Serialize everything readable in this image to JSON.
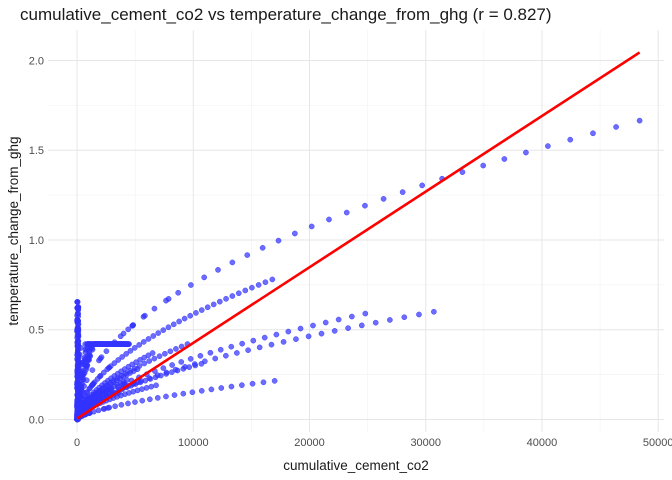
{
  "chart_data": {
    "type": "scatter",
    "title": "cumulative_cement_co2 vs temperature_change_from_ghg (r = 0.827)",
    "xlabel": "cumulative_cement_co2",
    "ylabel": "temperature_change_from_ghg",
    "xlim": [
      -2500,
      50500
    ],
    "ylim": [
      -0.07,
      2.17
    ],
    "xticks": [
      0,
      10000,
      20000,
      30000,
      40000,
      50000
    ],
    "xtick_labels": [
      "0",
      "10000",
      "20000",
      "30000",
      "40000",
      "50000"
    ],
    "yticks": [
      0.0,
      0.5,
      1.0,
      1.5,
      2.0
    ],
    "ytick_labels": [
      "0.0",
      "0.5",
      "1.0",
      "1.5",
      "2.0"
    ],
    "grid": true,
    "point_color": "#3333ff",
    "fit_line_color": "#ff0000",
    "fit_line": {
      "x": [
        0,
        48400
      ],
      "y": [
        0.005,
        2.045
      ]
    },
    "series": [
      {
        "curves": [
          {
            "x_end": 48400,
            "y_end": 1.665,
            "exp": 0.5,
            "n": 38
          },
          {
            "x_end": 16800,
            "y_end": 0.78,
            "exp": 0.55,
            "n": 45
          },
          {
            "x_end": 30700,
            "y_end": 0.6,
            "exp": 0.6,
            "n": 38
          },
          {
            "x_end": 24800,
            "y_end": 0.59,
            "exp": 0.6,
            "n": 34
          },
          {
            "x_end": 17000,
            "y_end": 0.215,
            "exp": 0.65,
            "n": 28
          },
          {
            "x_end": 10700,
            "y_end": 0.31,
            "exp": 0.6,
            "n": 32
          },
          {
            "x_end": 9500,
            "y_end": 0.42,
            "exp": 0.6,
            "n": 30
          },
          {
            "x_end": 6500,
            "y_end": 0.37,
            "exp": 0.6,
            "n": 28
          },
          {
            "x_end": 5200,
            "y_end": 0.28,
            "exp": 0.6,
            "n": 26
          },
          {
            "x_end": 6800,
            "y_end": 0.19,
            "exp": 0.6,
            "n": 26
          },
          {
            "x_end": 4300,
            "y_end": 0.22,
            "exp": 0.6,
            "n": 24
          },
          {
            "x_end": 3600,
            "y_end": 0.15,
            "exp": 0.6,
            "n": 22
          },
          {
            "x_end": 2800,
            "y_end": 0.17,
            "exp": 0.6,
            "n": 20
          },
          {
            "x_end": 2000,
            "y_end": 0.11,
            "exp": 0.6,
            "n": 18
          },
          {
            "x_end": 1500,
            "y_end": 0.08,
            "exp": 0.6,
            "n": 16
          }
        ],
        "vertical_cluster": {
          "x": [
            0,
            120
          ],
          "y": [
            0.0,
            0.66
          ],
          "n": 140
        }
      }
    ]
  }
}
